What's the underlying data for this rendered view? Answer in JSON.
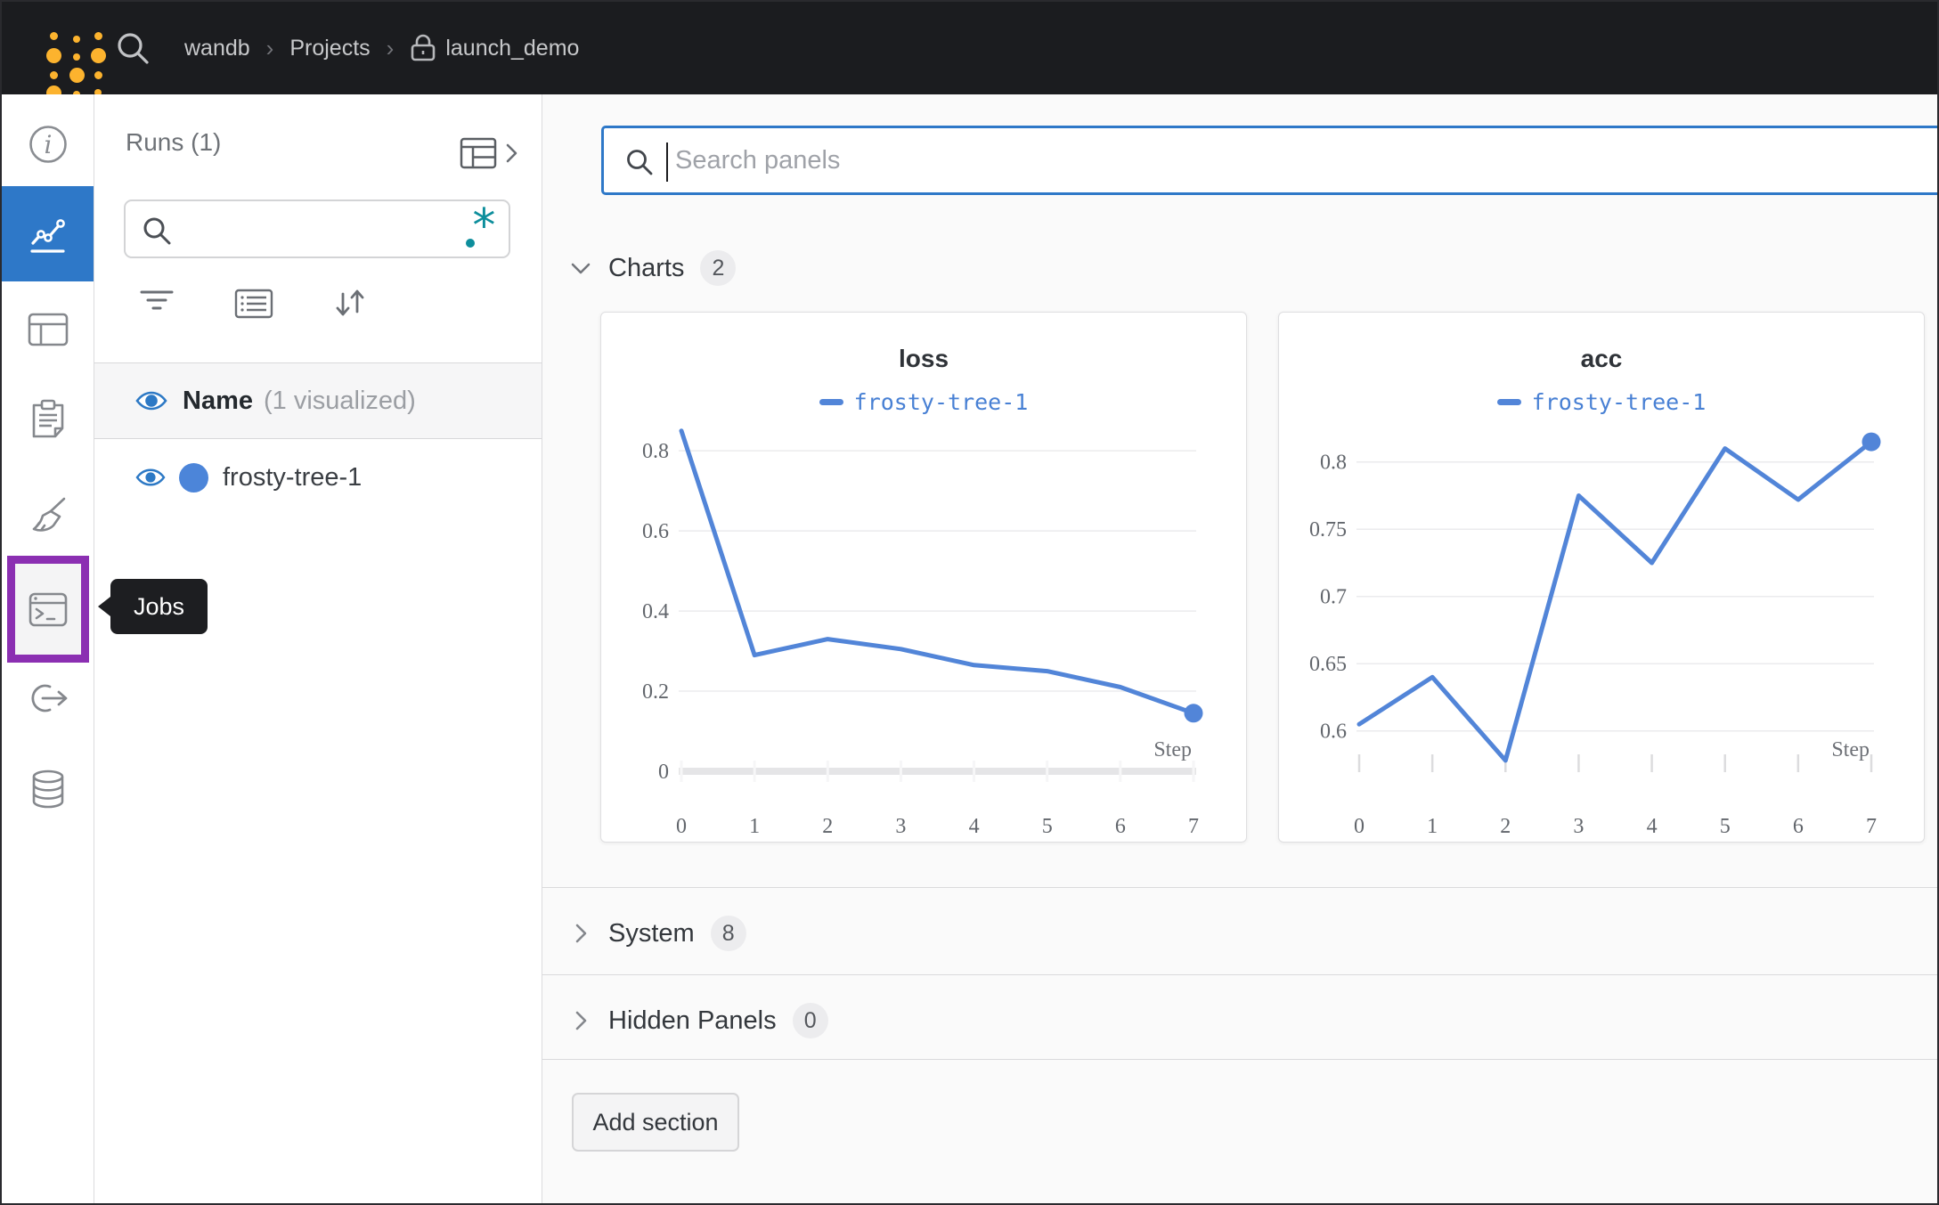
{
  "navbar": {
    "breadcrumb": {
      "team": "wandb",
      "section": "Projects",
      "project": "launch_demo",
      "separator": "›"
    }
  },
  "rail": {
    "tooltip": "Jobs",
    "items": [
      {
        "id": "overview"
      },
      {
        "id": "workspace",
        "selected": true
      },
      {
        "id": "panels"
      },
      {
        "id": "reports"
      },
      {
        "id": "sweeps"
      },
      {
        "id": "jobs",
        "highlighted": true
      },
      {
        "id": "launch"
      },
      {
        "id": "artifacts"
      }
    ]
  },
  "runs_panel": {
    "title": "Runs (1)",
    "search_value": "",
    "visibility_header": {
      "label": "Name",
      "annotation": "(1 visualized)"
    },
    "runs": [
      {
        "name": "frosty-tree-1",
        "color": "#4c85d9"
      }
    ]
  },
  "main": {
    "search": {
      "placeholder": "Search panels",
      "value": ""
    },
    "sections": [
      {
        "label": "Charts",
        "count": "2",
        "expanded": true
      },
      {
        "label": "System",
        "count": "8",
        "expanded": false
      },
      {
        "label": "Hidden Panels",
        "count": "0",
        "expanded": false
      }
    ],
    "add_section_label": "Add section"
  },
  "colors": {
    "navbar_bg": "#1b1c1f",
    "logo_yellow": "#fcb32e",
    "selected_blue": "#2e78c8",
    "search_focus_blue": "#2e78c8",
    "highlight_purple": "#8b2fb2",
    "regex_teal": "#0d8e9c",
    "line_blue": "#5285d8",
    "eye_blue": "#2d79c5",
    "run_dot_blue": "#4c85d9"
  },
  "chart_data": [
    {
      "type": "line",
      "title": "loss",
      "legend": "frosty-tree-1",
      "xlabel": "Step",
      "x": [
        0,
        1,
        2,
        3,
        4,
        5,
        6,
        7
      ],
      "values": [
        0.85,
        0.29,
        0.33,
        0.305,
        0.265,
        0.25,
        0.21,
        0.145
      ],
      "yticks": [
        0,
        0.2,
        0.4,
        0.6,
        0.8
      ],
      "ylim": [
        0,
        0.856
      ],
      "xlim": [
        0,
        7
      ],
      "show_zero_axis": true,
      "grid": "horizontal",
      "legend_position": "top",
      "line_color": "#5285d8",
      "end_marker": true
    },
    {
      "type": "line",
      "title": "acc",
      "legend": "frosty-tree-1",
      "xlabel": "Step",
      "x": [
        0,
        1,
        2,
        3,
        4,
        5,
        6,
        7
      ],
      "values": [
        0.605,
        0.64,
        0.578,
        0.775,
        0.725,
        0.81,
        0.772,
        0.815
      ],
      "yticks": [
        0.6,
        0.65,
        0.7,
        0.75,
        0.8
      ],
      "ylim": [
        0.57,
        0.825
      ],
      "xlim": [
        0,
        7
      ],
      "show_zero_axis": false,
      "grid": "horizontal",
      "legend_position": "top",
      "line_color": "#5285d8",
      "end_marker": true
    }
  ]
}
